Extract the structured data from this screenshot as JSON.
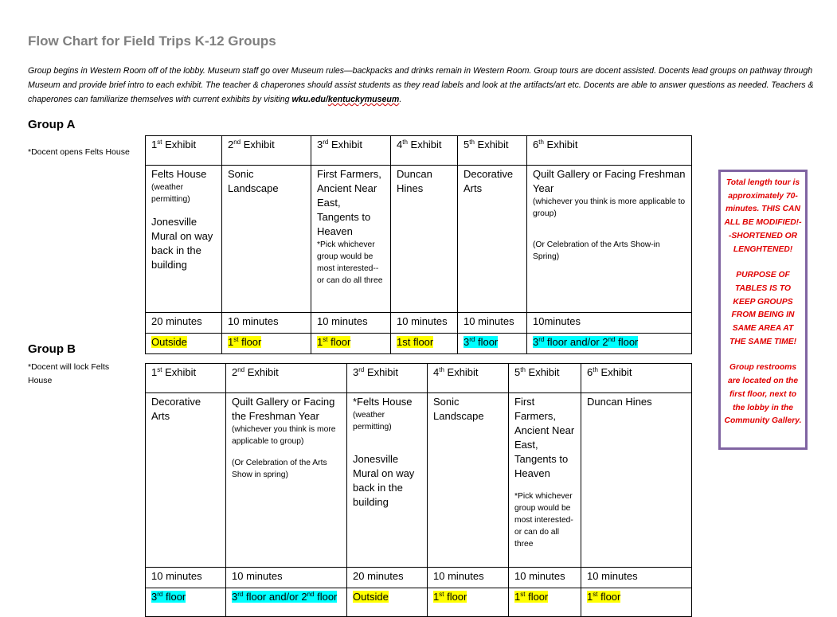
{
  "title": "Flow Chart for Field Trips K-12 Groups",
  "intro": {
    "text": "Group begins in Western Room off of the lobby. Museum staff go over Museum rules—backpacks and drinks remain in Western Room. Group tours are docent assisted. Docents lead groups on pathway through Museum and provide brief intro to each exhibit. The teacher & chaperones should assist students as they read labels and look at the artifacts/art etc. Docents are able to answer questions as needed. Teachers & chaperones can familiarize themselves with current exhibits by visiting ",
    "link_a": "wku.edu/",
    "link_b": "kentuckymuseum",
    "end": "."
  },
  "highlight_colors": {
    "yellow": "#ffff00",
    "cyan": "#00ffff"
  },
  "groups": [
    {
      "name": "Group A",
      "note": "*Docent opens Felts House",
      "headers": [
        [
          {
            "t": "1"
          },
          {
            "sup": "st"
          },
          {
            "t": " Exhibit"
          }
        ],
        [
          {
            "t": "2"
          },
          {
            "sup": "nd"
          },
          {
            "t": " Exhibit"
          }
        ],
        [
          {
            "t": "3"
          },
          {
            "sup": "rd"
          },
          {
            "t": " Exhibit"
          }
        ],
        [
          {
            "t": "4"
          },
          {
            "sup": "th"
          },
          {
            "t": " Exhibit"
          }
        ],
        [
          {
            "t": "5"
          },
          {
            "sup": "th"
          },
          {
            "t": " Exhibit"
          }
        ],
        [
          {
            "t": "6"
          },
          {
            "sup": "th"
          },
          {
            "t": " Exhibit"
          }
        ]
      ],
      "exhibits": [
        [
          {
            "style": "norm",
            "text": "Felts House"
          },
          {
            "style": "small",
            "text": "(weather permitting)"
          },
          {
            "style": "gap"
          },
          {
            "style": "norm",
            "text": "Jonesville Mural on way back in the building"
          }
        ],
        [
          {
            "style": "norm",
            "text": "Sonic Landscape"
          }
        ],
        [
          {
            "style": "norm",
            "text": "First Farmers, Ancient Near East, Tangents to Heaven"
          },
          {
            "style": "small",
            "text": "*Pick whichever group would be most interested--or can do all three"
          }
        ],
        [
          {
            "style": "norm",
            "text": "Duncan Hines"
          }
        ],
        [
          {
            "style": "norm",
            "text": "Decorative Arts"
          }
        ],
        [
          {
            "style": "norm",
            "text": "Quilt Gallery or Facing Freshman Year"
          },
          {
            "style": "small",
            "text": "(whichever you think is more applicable to group)"
          },
          {
            "style": "gap"
          },
          {
            "style": "gap"
          },
          {
            "style": "small",
            "text": "(Or Celebration of the Arts Show-in Spring)"
          }
        ]
      ],
      "durations": [
        "20 minutes",
        "10 minutes",
        "10 minutes",
        "10 minutes",
        "10 minutes",
        "10minutes"
      ],
      "floors": [
        {
          "color": "yellow",
          "parts": [
            {
              "t": "Outside"
            }
          ]
        },
        {
          "color": "yellow",
          "parts": [
            {
              "t": "1"
            },
            {
              "sup": "st"
            },
            {
              "t": " floor"
            }
          ]
        },
        {
          "color": "yellow",
          "parts": [
            {
              "t": "1"
            },
            {
              "sup": "st"
            },
            {
              "t": " floor"
            }
          ]
        },
        {
          "color": "yellow",
          "parts": [
            {
              "t": "1st floor"
            }
          ]
        },
        {
          "color": "cyan",
          "parts": [
            {
              "t": "3"
            },
            {
              "sup": "rd"
            },
            {
              "t": " floor"
            }
          ]
        },
        {
          "color": "cyan",
          "parts": [
            {
              "t": "3"
            },
            {
              "sup": "rd"
            },
            {
              "t": " floor and/or 2"
            },
            {
              "sup": "nd"
            },
            {
              "t": " floor"
            }
          ]
        }
      ]
    },
    {
      "name": "Group B",
      "note": "*Docent will lock Felts House",
      "headers": [
        [
          {
            "t": "1"
          },
          {
            "sup": "st"
          },
          {
            "t": " Exhibit"
          }
        ],
        [
          {
            "t": "2"
          },
          {
            "sup": "nd"
          },
          {
            "t": " Exhibit"
          }
        ],
        [
          {
            "t": "3"
          },
          {
            "sup": "rd"
          },
          {
            "t": " Exhibit"
          }
        ],
        [
          {
            "t": "4"
          },
          {
            "sup": "th"
          },
          {
            "t": " Exhibit"
          }
        ],
        [
          {
            "t": "5"
          },
          {
            "sup": "th"
          },
          {
            "t": " Exhibit"
          }
        ],
        [
          {
            "t": "6"
          },
          {
            "sup": "th"
          },
          {
            "t": " Exhibit"
          }
        ]
      ],
      "exhibits": [
        [
          {
            "style": "norm",
            "text": "Decorative Arts"
          }
        ],
        [
          {
            "style": "norm",
            "text": "Quilt Gallery or Facing the Freshman Year"
          },
          {
            "style": "small",
            "text": "(whichever you think is more applicable to group)"
          },
          {
            "style": "gap"
          },
          {
            "style": "small",
            "text": "(Or Celebration of the Arts Show in spring)"
          }
        ],
        [
          {
            "style": "norm",
            "text": "*Felts House"
          },
          {
            "style": "small",
            "text": "(weather permitting)"
          },
          {
            "style": "gap"
          },
          {
            "style": "gap"
          },
          {
            "style": "norm",
            "text": "Jonesville Mural on way back in the building"
          }
        ],
        [
          {
            "style": "norm",
            "text": "Sonic Landscape"
          }
        ],
        [
          {
            "style": "norm",
            "text": "First Farmers, Ancient Near East, Tangents to Heaven"
          },
          {
            "style": "gap"
          },
          {
            "style": "small",
            "text": "*Pick whichever group would be most interested- or can do all three"
          }
        ],
        [
          {
            "style": "norm",
            "text": "Duncan Hines"
          }
        ]
      ],
      "durations": [
        "10 minutes",
        "10 minutes",
        "20 minutes",
        "10 minutes",
        "10 minutes",
        "10 minutes"
      ],
      "floors": [
        {
          "color": "cyan",
          "parts": [
            {
              "t": "3"
            },
            {
              "sup": "rd"
            },
            {
              "t": " floor"
            }
          ]
        },
        {
          "color": "cyan",
          "parts": [
            {
              "t": "3"
            },
            {
              "sup": "rd"
            },
            {
              "t": " floor and/or 2"
            },
            {
              "sup": "nd"
            },
            {
              "t": " floor"
            }
          ]
        },
        {
          "color": "yellow",
          "parts": [
            {
              "t": "Outside"
            }
          ]
        },
        {
          "color": "yellow",
          "parts": [
            {
              "t": "1"
            },
            {
              "sup": "st"
            },
            {
              "t": " floor"
            }
          ]
        },
        {
          "color": "yellow",
          "parts": [
            {
              "t": "1"
            },
            {
              "sup": "st"
            },
            {
              "t": " floor"
            }
          ]
        },
        {
          "color": "yellow",
          "parts": [
            {
              "t": "1"
            },
            {
              "sup": "st"
            },
            {
              "t": " floor"
            }
          ]
        }
      ]
    }
  ],
  "callout": [
    "Total length tour is approximately 70-minutes. THIS CAN ALL BE MODIFIED!--SHORTENED OR LENGHTENED!",
    "PURPOSE OF TABLES IS TO KEEP GROUPS FROM BEING IN SAME AREA AT THE SAME TIME!",
    "Group restrooms are located on the first floor, next to the lobby in the Community Gallery."
  ]
}
